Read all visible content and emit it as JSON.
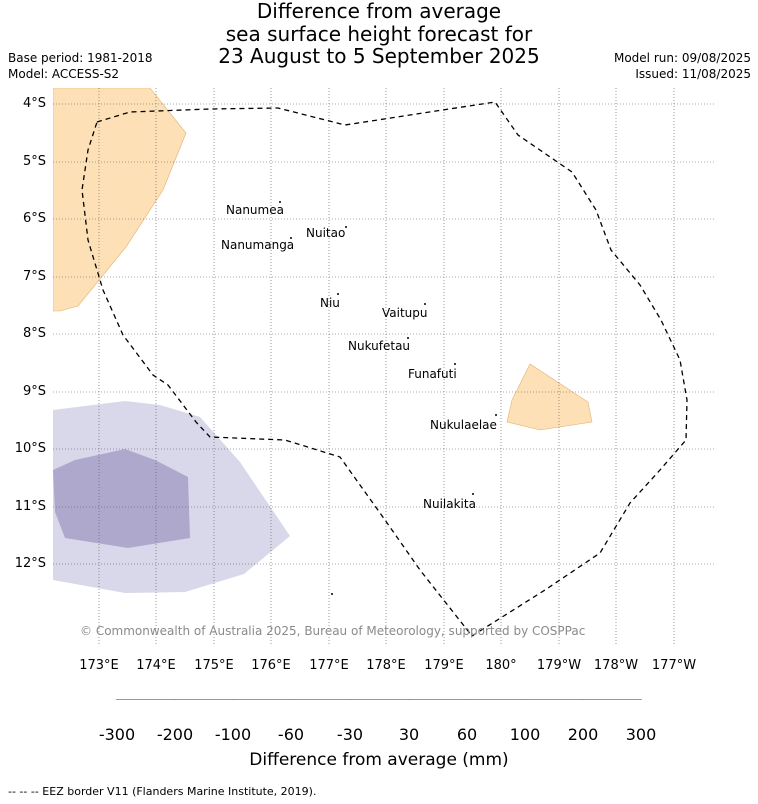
{
  "title_lines": [
    "Difference from average",
    "sea surface height forecast for",
    "23 August to 5 September 2025"
  ],
  "meta_left": [
    "Base period: 1981-2018",
    "Model: ACCESS-S2"
  ],
  "meta_right": [
    "Model run: 09/08/2025",
    "Issued: 11/08/2025"
  ],
  "y_ticks": [
    "4°S",
    "5°S",
    "6°S",
    "7°S",
    "8°S",
    "9°S",
    "10°S",
    "11°S",
    "12°S"
  ],
  "x_ticks": [
    "173°E",
    "174°E",
    "175°E",
    "176°E",
    "177°E",
    "178°E",
    "179°E",
    "180°",
    "179°W",
    "178°W",
    "177°W"
  ],
  "islands": [
    "Nanumea",
    "Nuitao",
    "Nanumanga",
    "Niu",
    "Vaitupu",
    "Nukufetau",
    "Funafuti",
    "Nukulaelae",
    "Nuilakita"
  ],
  "copyright": "© Commonwealth of Australia 2025, Bureau of Meteorology, supported by COSPPac",
  "colorbar": {
    "ticks": [
      "-300",
      "-200",
      "-100",
      "-60",
      "-30",
      "30",
      "60",
      "100",
      "200",
      "300"
    ],
    "colors": [
      "#3f0d59",
      "#542086",
      "#7f71aa",
      "#afa8cd",
      "#d8d8ea",
      "#ffffff",
      "#fde0b6",
      "#fdb865",
      "#e38414",
      "#b35806",
      "#7f3b08"
    ],
    "label": "Difference from average (mm)"
  },
  "footer": "-- -- -- EEZ border V11 (Flanders Marine Institute, 2019)."
}
